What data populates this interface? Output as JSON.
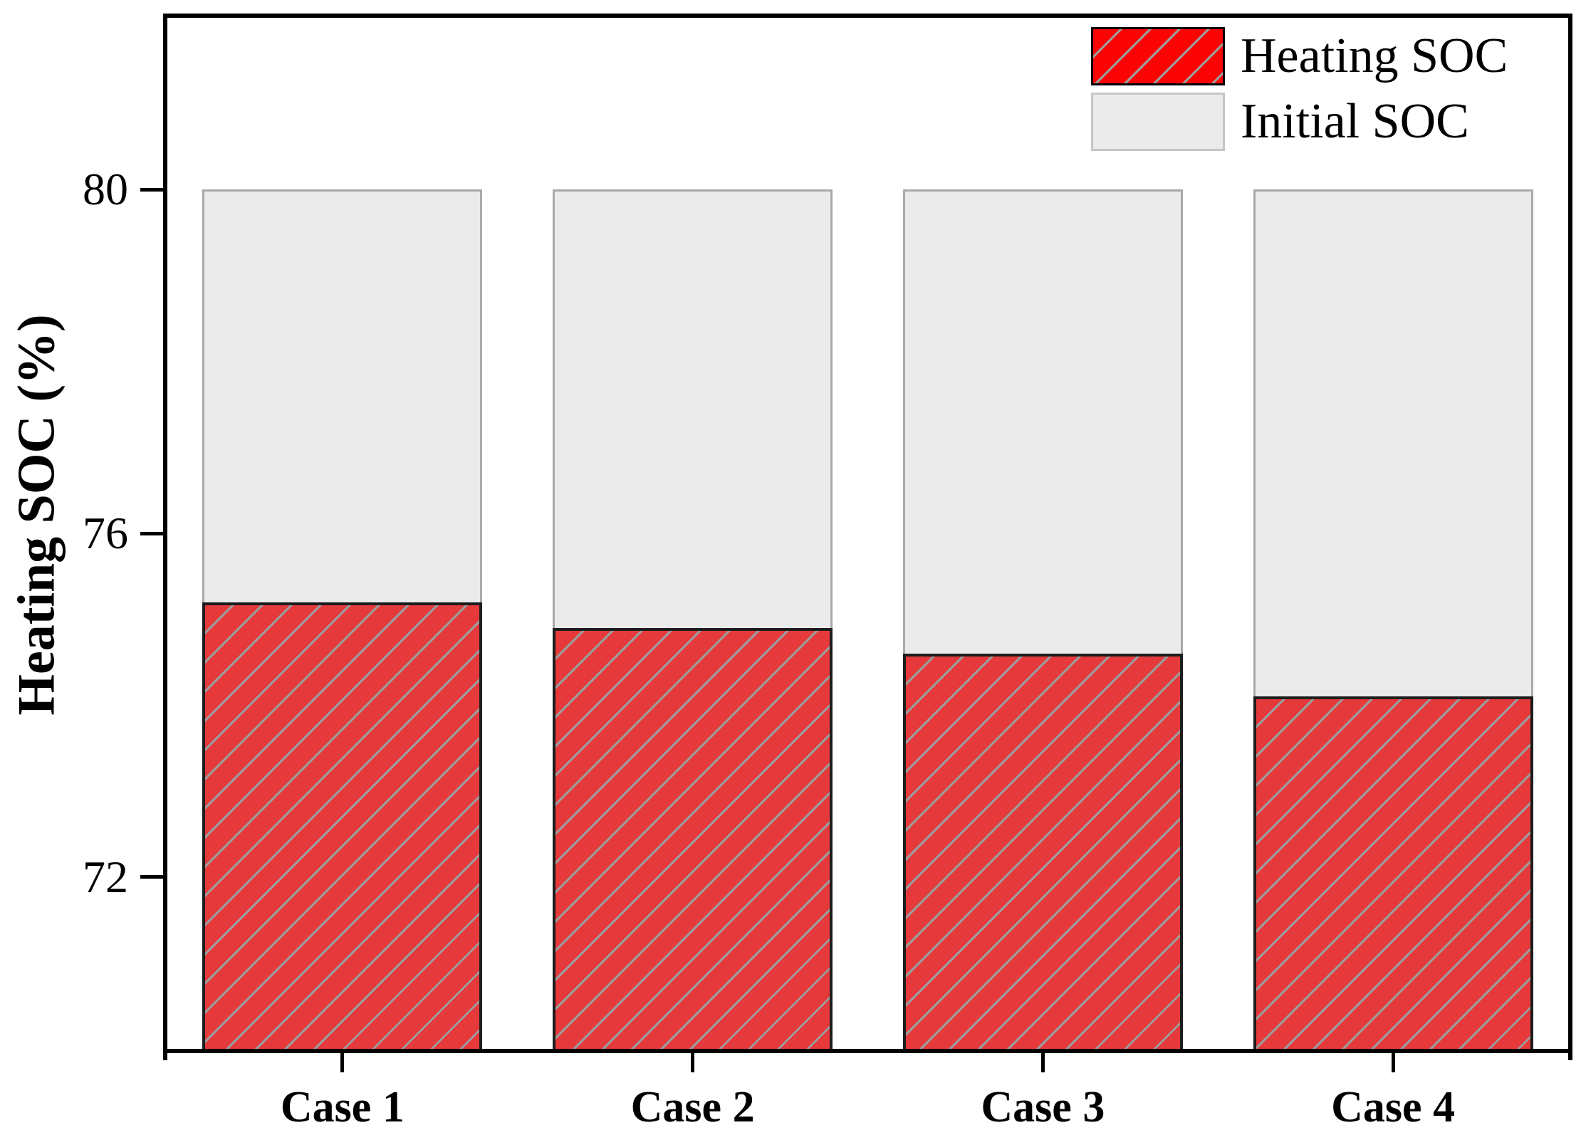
{
  "chart_data": {
    "type": "bar",
    "subtype": "overlaid-columns",
    "categories": [
      "Case 1",
      "Case 2",
      "Case 3",
      "Case 4"
    ],
    "series": [
      {
        "name": "Heating SOC",
        "values": [
          75.2,
          74.9,
          74.6,
          74.1
        ],
        "color": "#e5393b",
        "hatch": "diagonal-forward",
        "hatch_color": "#9d9d9d",
        "edge_color": "#1d1d1d"
      },
      {
        "name": "Initial SOC",
        "values": [
          80,
          80,
          80,
          80
        ],
        "color": "#ebebeb",
        "hatch": "none",
        "edge_color": "#a9a9a9"
      }
    ],
    "title": "",
    "xlabel": "",
    "ylabel": "Heating SOC (%)",
    "ylim": [
      70,
      82
    ],
    "yticks": [
      80,
      76,
      72
    ],
    "grid": false,
    "legend_position": "top-right",
    "legend_red_swatch_color": "#fb0404",
    "axis_color": "#000000",
    "background_color": "#ffffff"
  }
}
